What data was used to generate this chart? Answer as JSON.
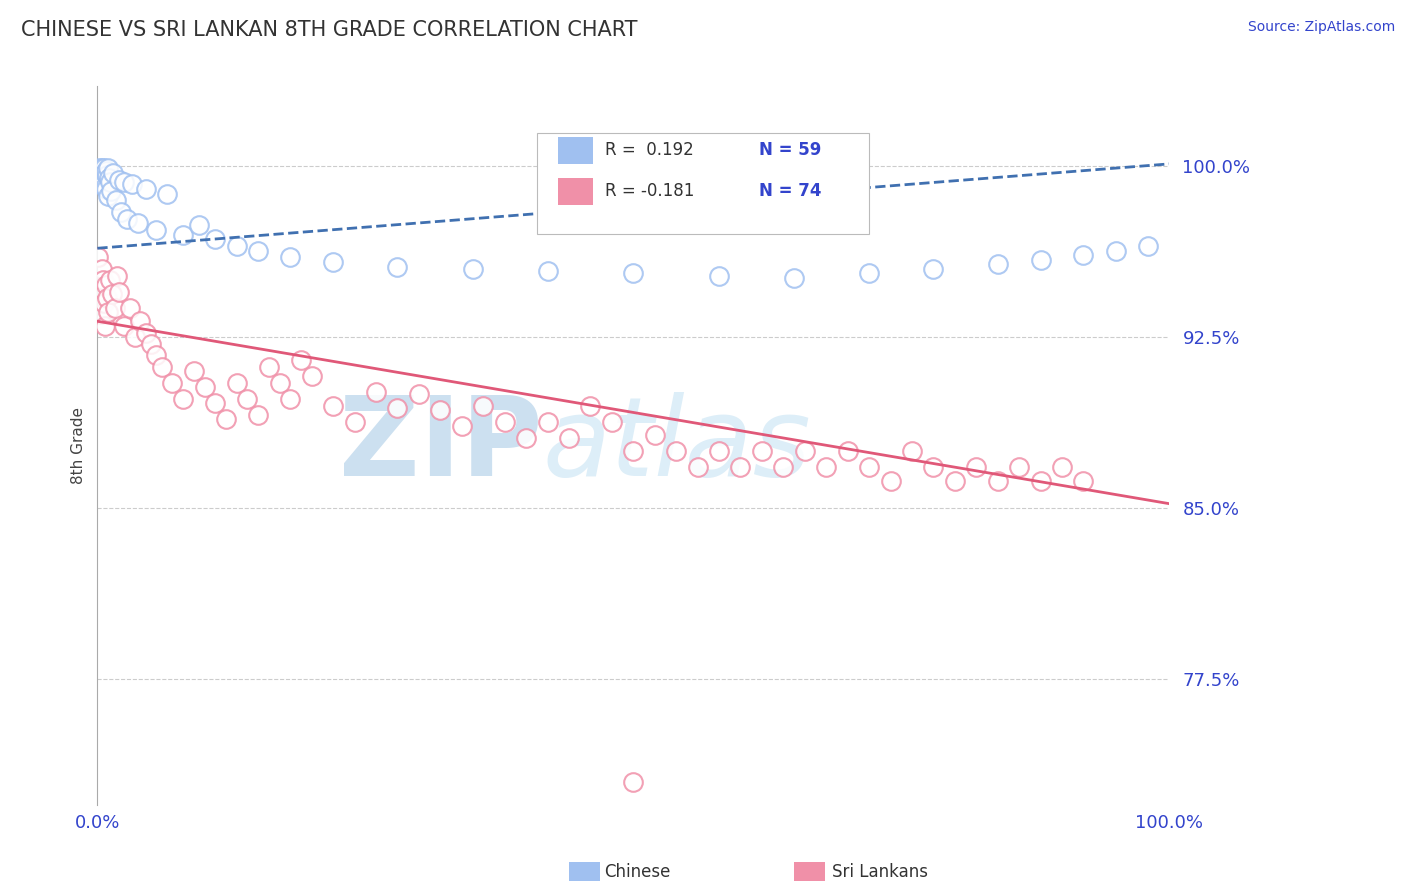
{
  "title": "CHINESE VS SRI LANKAN 8TH GRADE CORRELATION CHART",
  "source": "Source: ZipAtlas.com",
  "ylabel": "8th Grade",
  "y_tick_labels": [
    "77.5%",
    "85.0%",
    "92.5%",
    "100.0%"
  ],
  "y_tick_values": [
    0.775,
    0.85,
    0.925,
    1.0
  ],
  "xlim": [
    0.0,
    1.0
  ],
  "ylim": [
    0.72,
    1.035
  ],
  "legend_r_chinese": "R =  0.192",
  "legend_n_chinese": "N = 59",
  "legend_r_srilankan": "R = -0.181",
  "legend_n_srilankan": "N = 74",
  "chinese_color": "#a0c0f0",
  "srilankan_color": "#f090a8",
  "trendline_chinese_color": "#4070b0",
  "trendline_srilankan_color": "#e05878",
  "title_color": "#333333",
  "axis_label_color": "#3344cc",
  "grid_color": "#cccccc",
  "chinese_x": [
    0.001,
    0.001,
    0.001,
    0.002,
    0.002,
    0.002,
    0.002,
    0.003,
    0.003,
    0.003,
    0.004,
    0.004,
    0.004,
    0.005,
    0.005,
    0.005,
    0.006,
    0.006,
    0.007,
    0.007,
    0.008,
    0.008,
    0.009,
    0.01,
    0.01,
    0.011,
    0.012,
    0.013,
    0.015,
    0.017,
    0.02,
    0.022,
    0.025,
    0.028,
    0.032,
    0.038,
    0.045,
    0.055,
    0.065,
    0.08,
    0.095,
    0.11,
    0.13,
    0.15,
    0.18,
    0.22,
    0.28,
    0.35,
    0.42,
    0.5,
    0.58,
    0.65,
    0.72,
    0.78,
    0.84,
    0.88,
    0.92,
    0.95,
    0.98
  ],
  "chinese_y": [
    0.998,
    0.996,
    0.994,
    0.999,
    0.997,
    0.995,
    0.993,
    0.998,
    0.996,
    0.994,
    0.999,
    0.997,
    0.993,
    0.998,
    0.996,
    0.992,
    0.999,
    0.993,
    0.997,
    0.991,
    0.998,
    0.99,
    0.996,
    0.999,
    0.987,
    0.995,
    0.993,
    0.989,
    0.997,
    0.985,
    0.994,
    0.98,
    0.993,
    0.977,
    0.992,
    0.975,
    0.99,
    0.972,
    0.988,
    0.97,
    0.974,
    0.968,
    0.965,
    0.963,
    0.96,
    0.958,
    0.956,
    0.955,
    0.954,
    0.953,
    0.952,
    0.951,
    0.953,
    0.955,
    0.957,
    0.959,
    0.961,
    0.963,
    0.965
  ],
  "srilankan_x": [
    0.001,
    0.002,
    0.003,
    0.004,
    0.005,
    0.006,
    0.007,
    0.008,
    0.009,
    0.01,
    0.012,
    0.014,
    0.016,
    0.018,
    0.02,
    0.025,
    0.03,
    0.035,
    0.04,
    0.045,
    0.05,
    0.055,
    0.06,
    0.07,
    0.08,
    0.09,
    0.1,
    0.11,
    0.12,
    0.13,
    0.14,
    0.15,
    0.16,
    0.17,
    0.18,
    0.19,
    0.2,
    0.22,
    0.24,
    0.26,
    0.28,
    0.3,
    0.32,
    0.34,
    0.36,
    0.38,
    0.4,
    0.42,
    0.44,
    0.46,
    0.48,
    0.5,
    0.52,
    0.54,
    0.56,
    0.58,
    0.6,
    0.62,
    0.64,
    0.66,
    0.68,
    0.7,
    0.72,
    0.74,
    0.76,
    0.78,
    0.8,
    0.82,
    0.84,
    0.86,
    0.88,
    0.9,
    0.92,
    0.5
  ],
  "srilankan_y": [
    0.96,
    0.945,
    0.935,
    0.955,
    0.95,
    0.94,
    0.93,
    0.948,
    0.942,
    0.936,
    0.95,
    0.944,
    0.938,
    0.952,
    0.945,
    0.93,
    0.938,
    0.925,
    0.932,
    0.927,
    0.922,
    0.917,
    0.912,
    0.905,
    0.898,
    0.91,
    0.903,
    0.896,
    0.889,
    0.905,
    0.898,
    0.891,
    0.912,
    0.905,
    0.898,
    0.915,
    0.908,
    0.895,
    0.888,
    0.901,
    0.894,
    0.9,
    0.893,
    0.886,
    0.895,
    0.888,
    0.881,
    0.888,
    0.881,
    0.895,
    0.888,
    0.875,
    0.882,
    0.875,
    0.868,
    0.875,
    0.868,
    0.875,
    0.868,
    0.875,
    0.868,
    0.875,
    0.868,
    0.862,
    0.875,
    0.868,
    0.862,
    0.868,
    0.862,
    0.868,
    0.862,
    0.868,
    0.862,
    0.73
  ],
  "trendline_chinese_x0": 0.0,
  "trendline_chinese_x1": 1.0,
  "trendline_chinese_y0": 0.964,
  "trendline_chinese_y1": 1.001,
  "trendline_srilankan_x0": 0.0,
  "trendline_srilankan_x1": 1.0,
  "trendline_srilankan_y0": 0.932,
  "trendline_srilankan_y1": 0.852
}
